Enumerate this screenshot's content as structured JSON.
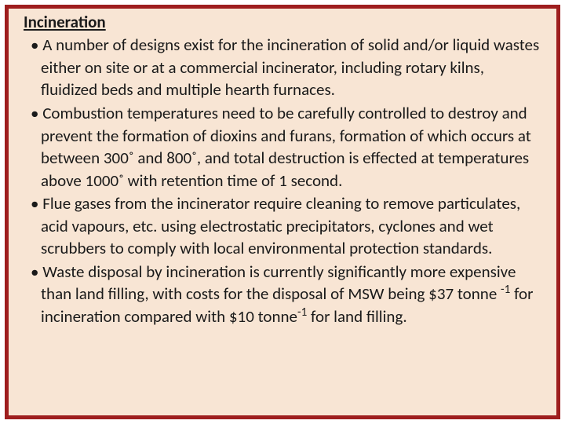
{
  "slide": {
    "title": "Incineration",
    "bullets": [
      " A number of designs exist for the incineration of solid and/or liquid wastes either on site or at a commercial incinerator, including rotary kilns, fluidized beds and multiple hearth furnaces.",
      "Combustion temperatures need to be carefully controlled to destroy and prevent the formation of dioxins and furans, formation of which occurs at between 300˚ and 800˚, and total destruction is effected at temperatures above 1000˚ with retention time of 1 second.",
      "Flue gases from the incinerator require cleaning to remove particulates, acid vapours, etc. using electrostatic precipitators, cyclones and wet scrubbers to comply with local environmental protection standards.",
      "Waste disposal by incineration is currently significantly more expensive than land filling, with costs for the disposal of MSW being $37 tonne "
    ],
    "bullet4_sup1": "-1",
    "bullet4_mid": " for incineration compared with $10 tonne",
    "bullet4_sup2": "-1",
    "bullet4_end": " for land filling."
  },
  "style": {
    "border_color": "#9e1e1e",
    "background_color": "#f8e5d4",
    "text_color": "#1a1a1a",
    "title_fontsize": 21,
    "body_fontsize": 21,
    "line_height": 1.36
  }
}
